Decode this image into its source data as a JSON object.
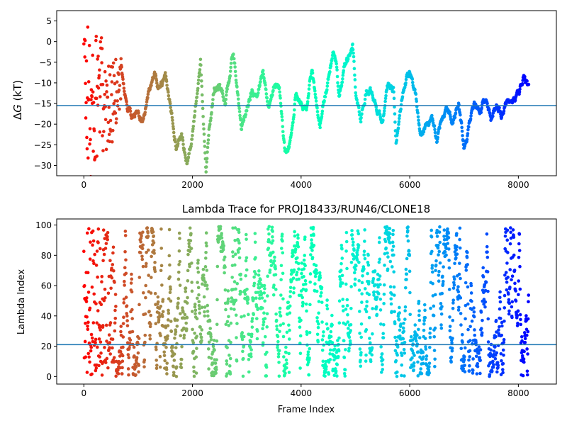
{
  "chart_data": [
    {
      "type": "scatter",
      "title": "",
      "xlabel": "",
      "ylabel": "ΔG (kT)",
      "ylabel_parts": {
        "delta": "Δ",
        "g": "G",
        "unit": " (kT)"
      },
      "xlim": [
        -500,
        8700
      ],
      "ylim": [
        -32.5,
        7.5
      ],
      "xticks": [
        0,
        2000,
        4000,
        6000,
        8000
      ],
      "yticks": [
        5,
        0,
        -5,
        -10,
        -15,
        -20,
        -25,
        -30
      ],
      "colormap": "rainbow",
      "color_by": "frame index (red at frame 0 → violet at the last frame)",
      "hline": {
        "y": -15.5,
        "color": "#1f77b4"
      },
      "frame_max": 8190,
      "trend_points": [
        [
          0,
          -2
        ],
        [
          60,
          -12
        ],
        [
          120,
          -18
        ],
        [
          200,
          -16
        ],
        [
          300,
          -12
        ],
        [
          400,
          -14
        ],
        [
          500,
          -16
        ],
        [
          600,
          -12
        ],
        [
          700,
          -8
        ],
        [
          800,
          -16
        ],
        [
          900,
          -19
        ],
        [
          1000,
          -17
        ],
        [
          1100,
          -20
        ],
        [
          1200,
          -12
        ],
        [
          1300,
          -8
        ],
        [
          1400,
          -12
        ],
        [
          1500,
          -7
        ],
        [
          1600,
          -17
        ],
        [
          1650,
          -20
        ],
        [
          1700,
          -25
        ],
        [
          1800,
          -22
        ],
        [
          1900,
          -30
        ],
        [
          2000,
          -22
        ],
        [
          2100,
          -11
        ],
        [
          2150,
          -4
        ],
        [
          2200,
          -20
        ],
        [
          2250,
          -32
        ],
        [
          2300,
          -22
        ],
        [
          2400,
          -11
        ],
        [
          2500,
          -11
        ],
        [
          2600,
          -15
        ],
        [
          2700,
          -7
        ],
        [
          2750,
          -2.5
        ],
        [
          2800,
          -8
        ],
        [
          2900,
          -21
        ],
        [
          3000,
          -16
        ],
        [
          3100,
          -12
        ],
        [
          3200,
          -14
        ],
        [
          3300,
          -7
        ],
        [
          3400,
          -15
        ],
        [
          3500,
          -11
        ],
        [
          3600,
          -11
        ],
        [
          3700,
          -27
        ],
        [
          3800,
          -25
        ],
        [
          3900,
          -13
        ],
        [
          4000,
          -14
        ],
        [
          4100,
          -16
        ],
        [
          4200,
          -7
        ],
        [
          4300,
          -17
        ],
        [
          4350,
          -22
        ],
        [
          4400,
          -15
        ],
        [
          4500,
          -9
        ],
        [
          4600,
          -3
        ],
        [
          4650,
          -6
        ],
        [
          4700,
          -15
        ],
        [
          4800,
          -6
        ],
        [
          4900,
          -3
        ],
        [
          4950,
          -0.5
        ],
        [
          5000,
          -12
        ],
        [
          5100,
          -19
        ],
        [
          5200,
          -12
        ],
        [
          5300,
          -12
        ],
        [
          5400,
          -16
        ],
        [
          5500,
          -19
        ],
        [
          5600,
          -11
        ],
        [
          5700,
          -11
        ],
        [
          5750,
          -25
        ],
        [
          5800,
          -20
        ],
        [
          5900,
          -11
        ],
        [
          6000,
          -7
        ],
        [
          6100,
          -12
        ],
        [
          6200,
          -23
        ],
        [
          6300,
          -20
        ],
        [
          6400,
          -18
        ],
        [
          6500,
          -24
        ],
        [
          6600,
          -18
        ],
        [
          6700,
          -16
        ],
        [
          6800,
          -20
        ],
        [
          6900,
          -14
        ],
        [
          7000,
          -26
        ],
        [
          7100,
          -20
        ],
        [
          7200,
          -16
        ],
        [
          7300,
          -17
        ],
        [
          7400,
          -14
        ],
        [
          7500,
          -19
        ],
        [
          7600,
          -16
        ],
        [
          7700,
          -18
        ],
        [
          7800,
          -15
        ],
        [
          7900,
          -15
        ],
        [
          8000,
          -13
        ],
        [
          8100,
          -9
        ],
        [
          8190,
          -12
        ]
      ]
    },
    {
      "type": "scatter",
      "title": "Lambda Trace for PROJ18433/RUN46/CLONE18",
      "xlabel": "Frame Index",
      "ylabel": "Lambda Index",
      "xlim": [
        -500,
        8700
      ],
      "ylim": [
        -5,
        104
      ],
      "xticks": [
        0,
        2000,
        4000,
        6000,
        8000
      ],
      "yticks": [
        0,
        20,
        40,
        60,
        80,
        100
      ],
      "colormap": "rainbow",
      "color_by": "frame index (red at frame 0 → violet at the last frame)",
      "hline": {
        "y": 21,
        "color": "#1f77b4"
      },
      "frame_max": 8190,
      "lambda_range": [
        0,
        99
      ]
    }
  ],
  "colors": {
    "axes": "#000000",
    "hline": "#1f77b4",
    "background": "#ffffff"
  }
}
